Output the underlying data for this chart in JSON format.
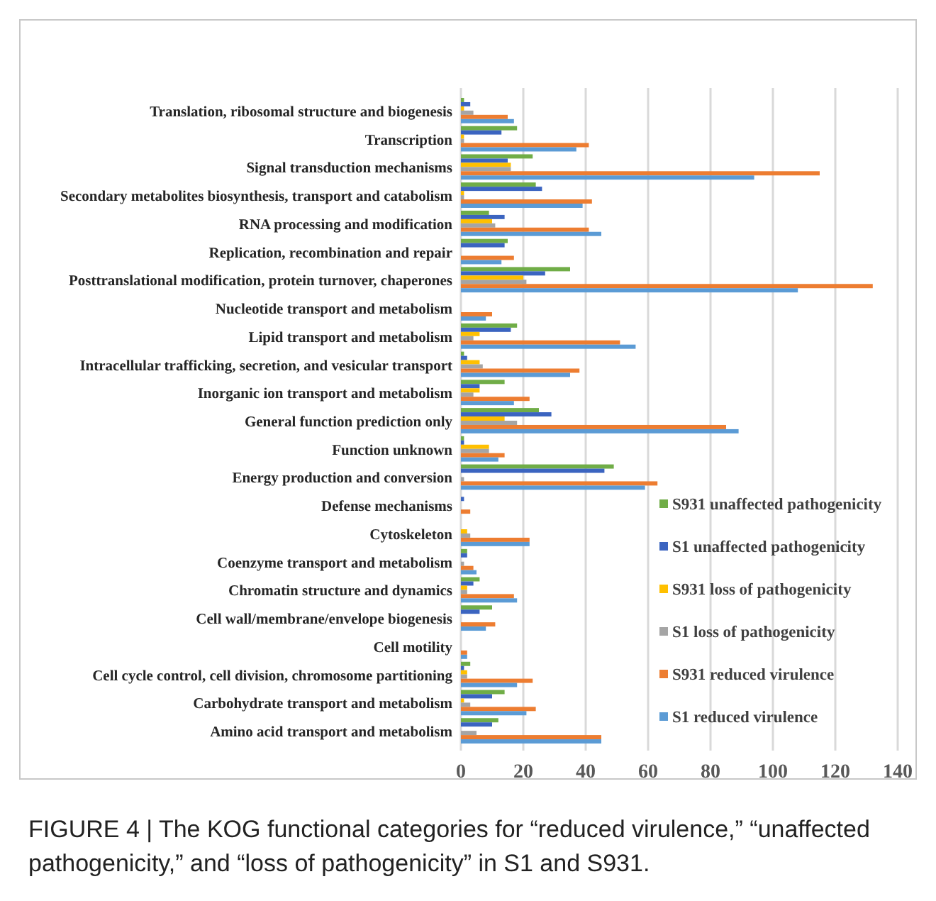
{
  "chart_data": {
    "type": "bar",
    "orientation": "horizontal",
    "categories": [
      "Translation, ribosomal structure and biogenesis",
      "Transcription",
      "Signal transduction mechanisms",
      "Secondary metabolites biosynthesis, transport and catabolism",
      "RNA processing and modification",
      "Replication, recombination and repair",
      "Posttranslational modification, protein turnover, chaperones",
      "Nucleotide transport and metabolism",
      "Lipid transport and metabolism",
      "Intracellular trafficking, secretion, and vesicular transport",
      "Inorganic ion transport and metabolism",
      "General function prediction only",
      "Function unknown",
      "Energy production and conversion",
      "Defense mechanisms",
      "Cytoskeleton",
      "Coenzyme transport and metabolism",
      "Chromatin structure and dynamics",
      "Cell wall/membrane/envelope biogenesis",
      "Cell motility",
      "Cell cycle control, cell division, chromosome partitioning",
      "Carbohydrate transport and metabolism",
      "Amino acid transport and metabolism"
    ],
    "series": [
      {
        "name": "S931 unaffected pathogenicity",
        "color": "#70ad47",
        "values": [
          1,
          18,
          23,
          24,
          9,
          15,
          35,
          0,
          18,
          1,
          14,
          25,
          1,
          49,
          0,
          0,
          2,
          6,
          10,
          0,
          3,
          14,
          12
        ]
      },
      {
        "name": "S1 unaffected pathogenicity",
        "color": "#3b64c0",
        "values": [
          3,
          13,
          15,
          26,
          14,
          14,
          27,
          0,
          16,
          2,
          6,
          29,
          1,
          46,
          1,
          0,
          2,
          4,
          6,
          0,
          1,
          10,
          10
        ]
      },
      {
        "name": "S931 loss of pathogenicity",
        "color": "#ffc000",
        "values": [
          1,
          1,
          16,
          1,
          10,
          0,
          20,
          0,
          6,
          6,
          6,
          14,
          9,
          0,
          0,
          2,
          0,
          2,
          0,
          0,
          2,
          1,
          0
        ]
      },
      {
        "name": "S1 loss of pathogenicity",
        "color": "#a5a5a5",
        "values": [
          4,
          1,
          16,
          1,
          11,
          0,
          21,
          0,
          4,
          7,
          4,
          18,
          9,
          1,
          0,
          3,
          1,
          2,
          0,
          0,
          2,
          3,
          5
        ]
      },
      {
        "name": "S931 reduced virulence",
        "color": "#ed7d31",
        "values": [
          15,
          41,
          115,
          42,
          41,
          17,
          132,
          10,
          51,
          38,
          22,
          85,
          14,
          63,
          3,
          22,
          4,
          17,
          11,
          2,
          23,
          24,
          45
        ]
      },
      {
        "name": "S1 reduced virulence",
        "color": "#5b9bd5",
        "values": [
          17,
          37,
          94,
          39,
          45,
          13,
          108,
          8,
          56,
          35,
          17,
          89,
          12,
          59,
          0,
          22,
          5,
          18,
          8,
          2,
          18,
          21,
          45
        ]
      }
    ],
    "xlim": [
      0,
      140
    ],
    "xticks": [
      0,
      20,
      40,
      60,
      80,
      100,
      120,
      140
    ],
    "grid": "x",
    "legend": "bottom right",
    "annotations": [
      "FIGURE 4 | The KOG functional categories for “reduced virulence,” “unaffected pathogenicity,” and “loss of pathogenicity” in S1 and S931."
    ]
  }
}
